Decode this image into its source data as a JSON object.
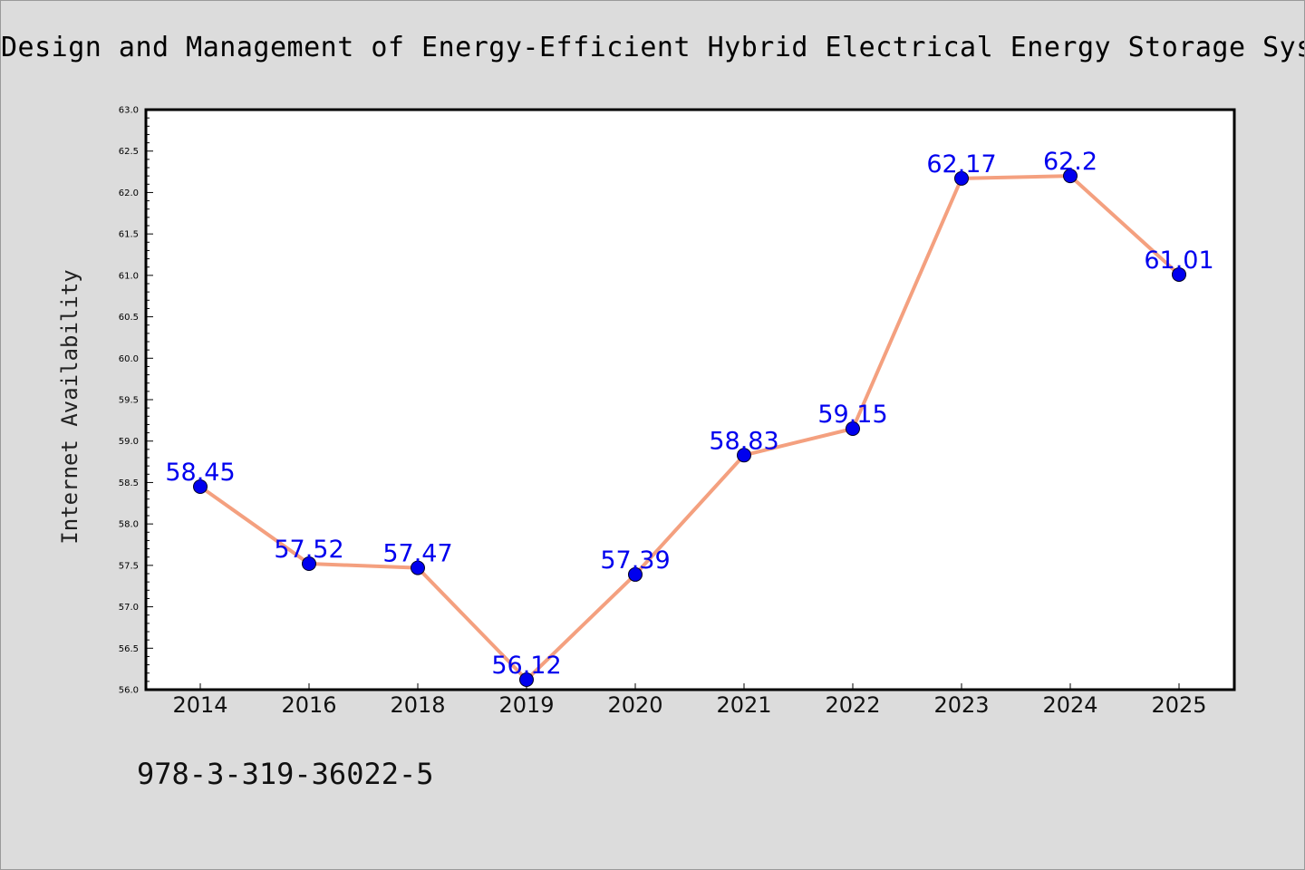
{
  "chart_data": {
    "type": "line",
    "title": "Design and Management of Energy-Efficient Hybrid Electrical Energy Storage Systems",
    "ylabel": "Internet Availability",
    "xlabel": "",
    "categories": [
      "2014",
      "2016",
      "2018",
      "2019",
      "2020",
      "2021",
      "2022",
      "2023",
      "2024",
      "2025"
    ],
    "series": [
      {
        "values": [
          58.45,
          57.52,
          57.47,
          56.12,
          57.39,
          58.83,
          59.15,
          62.17,
          62.2,
          61.01
        ],
        "labels": [
          "58.45",
          "57.52",
          "57.47",
          "56.12",
          "57.39",
          "58.83",
          "59.15",
          "62.17",
          "62.2",
          "61.01"
        ]
      }
    ],
    "ylim": [
      56.0,
      63.0
    ],
    "yticks": [
      "56.0",
      "56.5",
      "57.0",
      "57.5",
      "58.0",
      "58.5",
      "59.0",
      "59.5",
      "60.0",
      "60.5",
      "61.0",
      "61.5",
      "62.0",
      "62.5",
      "63.0"
    ],
    "grid": false,
    "legend": "none",
    "colors": {
      "line": "#f4a07f",
      "marker": "#0000ee",
      "label": "#0000ee",
      "background": "#dcdcdc",
      "plot_area": "#ffffff"
    }
  },
  "footer": {
    "isbn": "978-3-319-36022-5"
  }
}
